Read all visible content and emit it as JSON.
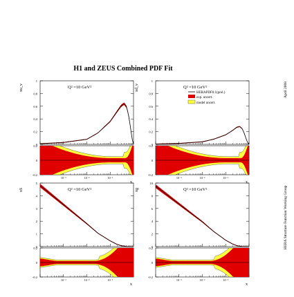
{
  "title": "H1 and ZEUS Combined PDF Fit",
  "side_text": {
    "date": "April 2008",
    "group": "HERA Structure Function Working Group"
  },
  "colors": {
    "exp_band": "#e00000",
    "model_band": "#ffff40",
    "central": "#000000"
  },
  "legend": {
    "central_label": "HERAPDF0.1(prel.)",
    "exp_label": "exp. uncert.",
    "model_label": "model uncert."
  },
  "chart_data": [
    {
      "type": "area",
      "ylabel": "xu_v",
      "q2_label": "Q² =10 GeV²",
      "xlabel": "x",
      "x": [
        0.0001,
        0.001,
        0.01,
        0.03,
        0.1,
        0.2,
        0.3,
        0.4,
        0.5,
        0.6,
        0.7,
        0.8,
        0.9,
        0.98
      ],
      "central": [
        0.01,
        0.03,
        0.08,
        0.18,
        0.36,
        0.52,
        0.61,
        0.64,
        0.59,
        0.48,
        0.33,
        0.18,
        0.06,
        0.005
      ],
      "ylim": [
        0,
        1
      ],
      "yticks": [
        "0",
        "0.2",
        "0.4",
        "0.6",
        "0.8",
        "1"
      ],
      "ratio": {
        "ylim": [
          -0.2,
          0.2
        ],
        "yticks": [
          "-0.2",
          "0",
          "0.2"
        ]
      }
    },
    {
      "type": "area",
      "ylabel": "xd_v",
      "q2_label": "Q² =10 GeV²",
      "xlabel": "x",
      "x": [
        0.0001,
        0.001,
        0.01,
        0.03,
        0.1,
        0.2,
        0.3,
        0.4,
        0.5,
        0.6,
        0.7,
        0.8,
        0.9,
        0.98
      ],
      "central": [
        0.005,
        0.015,
        0.04,
        0.08,
        0.15,
        0.22,
        0.27,
        0.28,
        0.25,
        0.19,
        0.12,
        0.06,
        0.02,
        0.002
      ],
      "ylim": [
        0,
        1
      ],
      "yticks": [
        "0",
        "0.2",
        "0.4",
        "0.6",
        "0.8",
        "1"
      ],
      "ratio": {
        "ylim": [
          -0.2,
          0.2
        ],
        "yticks": [
          "-0.2",
          "0",
          "0.2"
        ]
      }
    },
    {
      "type": "area",
      "ylabel": "xS",
      "q2_label": "Q² =10 GeV²",
      "xlabel": "x",
      "x": [
        0.0001,
        0.001,
        0.01,
        0.03,
        0.1,
        0.2,
        0.3,
        0.5,
        0.7,
        0.9
      ],
      "central": [
        4.8,
        3.3,
        1.8,
        1.05,
        0.45,
        0.17,
        0.07,
        0.01,
        0.001,
        0.0
      ],
      "ylim": [
        0,
        5
      ],
      "yticks": [
        "0",
        "1",
        "2",
        "3",
        "4",
        "5"
      ],
      "ratio": {
        "ylim": [
          -0.2,
          0.2
        ],
        "yticks": [
          "-0.2",
          "0",
          "0.2"
        ]
      }
    },
    {
      "type": "area",
      "ylabel": "xg",
      "q2_label": "Q² =10 GeV²",
      "xlabel": "x",
      "x": [
        0.0001,
        0.001,
        0.01,
        0.03,
        0.1,
        0.2,
        0.3,
        0.5,
        0.7,
        0.9
      ],
      "central": [
        9.5,
        6.7,
        3.9,
        2.4,
        1.0,
        0.4,
        0.15,
        0.02,
        0.002,
        0.0
      ],
      "ylim": [
        0,
        10
      ],
      "yticks": [
        "0",
        "2",
        "4",
        "6",
        "8",
        "10"
      ],
      "ratio": {
        "ylim": [
          -0.2,
          0.2
        ],
        "yticks": [
          "-0.2",
          "0",
          "0.2"
        ]
      }
    }
  ]
}
